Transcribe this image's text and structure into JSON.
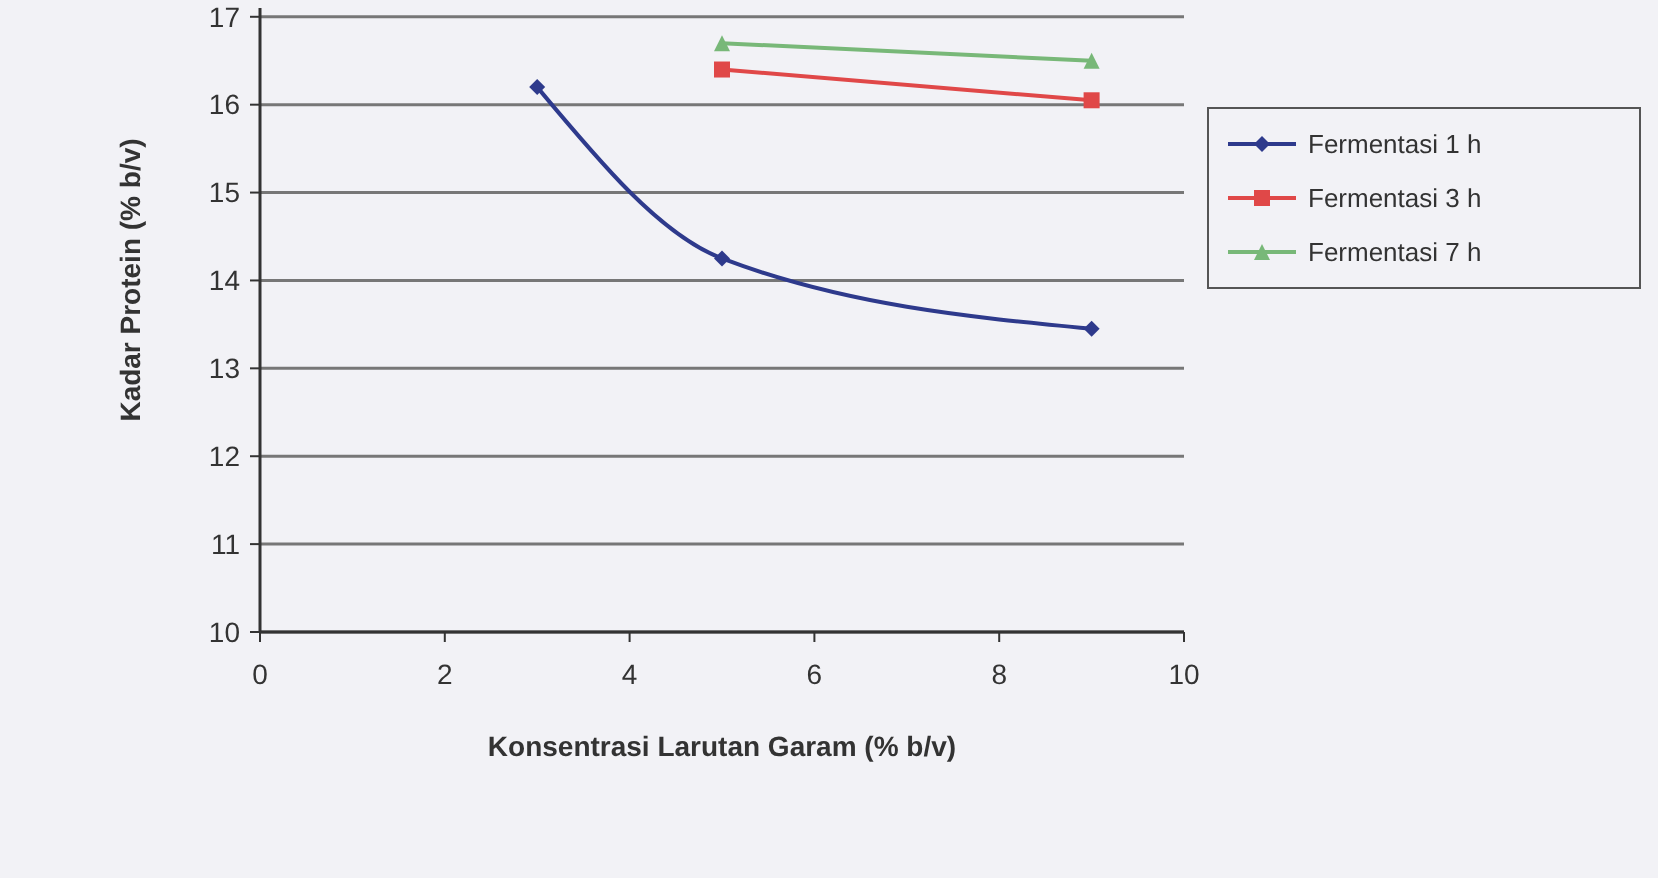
{
  "chart_data": {
    "type": "line",
    "xlabel": "Konsentrasi Larutan Garam (% b/v)",
    "ylabel": "Kadar Protein (% b/v)",
    "x": [
      3,
      5,
      9
    ],
    "series": [
      {
        "name": "Fermentasi 1 h",
        "color": "#2e3a8c",
        "values": [
          16.2,
          14.25,
          13.45
        ],
        "marker": "diamond"
      },
      {
        "name": "Fermentasi 3 h",
        "color": "#e04848",
        "values": [
          null,
          16.4,
          16.05
        ],
        "marker": "square"
      },
      {
        "name": "Fermentasi 7 h",
        "color": "#78b878",
        "values": [
          null,
          16.7,
          16.5
        ],
        "marker": "triangle"
      }
    ],
    "xlim": [
      0,
      10
    ],
    "xticks": [
      0,
      2,
      4,
      6,
      8,
      10
    ],
    "ylim": [
      10,
      17.1
    ],
    "yticks": [
      10,
      11,
      12,
      13,
      14,
      15,
      16,
      17
    ],
    "grid": "y",
    "legend": "right"
  }
}
